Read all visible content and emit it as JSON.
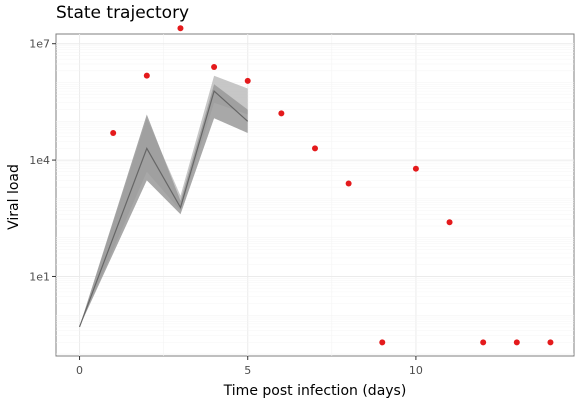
{
  "chart_data": {
    "type": "scatter",
    "title": "State trajectory",
    "xlabel": "Time post infection (days)",
    "ylabel": "Viral load",
    "y_scale": "log10",
    "xlim": [
      -0.7,
      14.7
    ],
    "ylim_log10": [
      -1.05,
      7.25
    ],
    "x_ticks": [
      0,
      5,
      10
    ],
    "x_tick_labels": [
      "0",
      "5",
      "10"
    ],
    "y_ticks_log10": [
      1,
      4,
      7
    ],
    "y_tick_labels": [
      "1e1",
      "1e4",
      "1e7"
    ],
    "grid": true,
    "legend": "none",
    "observations": {
      "color": "#e41a1c",
      "x": [
        1,
        2,
        3,
        4,
        5,
        6,
        7,
        8,
        9,
        10,
        11,
        12,
        13,
        14
      ],
      "y": [
        50000,
        1500000,
        25000000,
        2500000,
        1100000,
        160000,
        20000,
        2500,
        0.2,
        6000,
        250,
        0.2,
        0.2,
        0.2
      ]
    },
    "bands": [
      {
        "color": "#bdbdbd",
        "x": [
          0,
          2,
          3,
          4,
          5
        ],
        "lower": [
          0.5,
          5000,
          500,
          300000,
          150000
        ],
        "upper": [
          0.5,
          120000,
          1200,
          1500000,
          700000
        ]
      },
      {
        "color": "#999999",
        "x": [
          0,
          2,
          3,
          4,
          5
        ],
        "lower": [
          0.5,
          3000,
          400,
          120000,
          50000
        ],
        "upper": [
          0.5,
          150000,
          900,
          900000,
          200000
        ]
      }
    ],
    "median_line": {
      "color": "#666666",
      "x": [
        0,
        2,
        3,
        4,
        5
      ],
      "y": [
        0.5,
        20000,
        600,
        600000,
        100000
      ]
    }
  }
}
